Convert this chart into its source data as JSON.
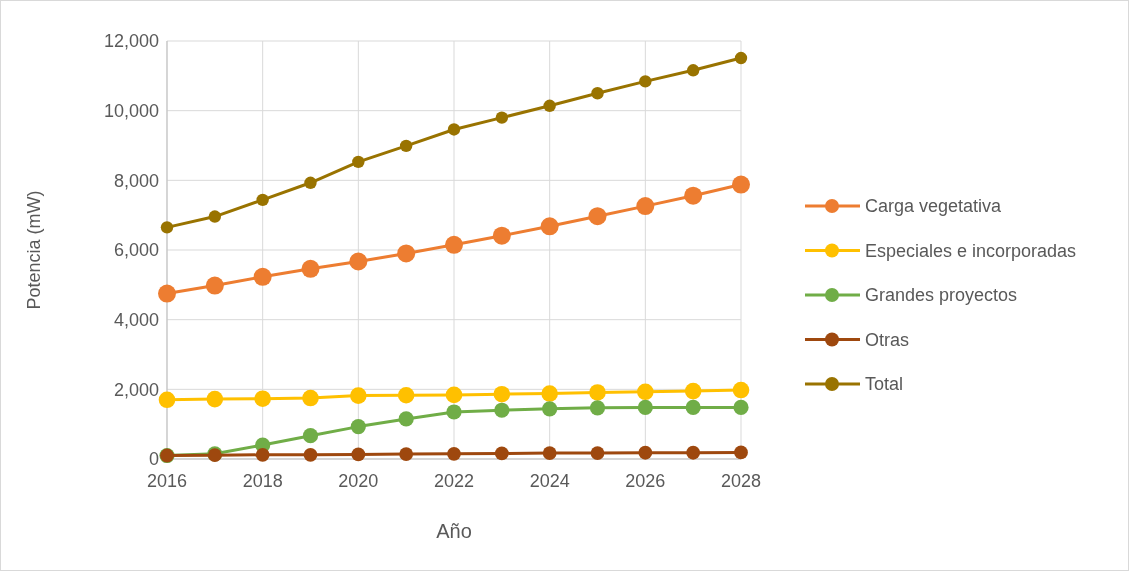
{
  "chart_data": {
    "type": "line",
    "xlabel": "Año",
    "ylabel": "Potencia (mW)",
    "x": [
      2016,
      2017,
      2018,
      2019,
      2020,
      2021,
      2022,
      2023,
      2024,
      2025,
      2026,
      2027,
      2028
    ],
    "xlim": [
      2016,
      2028
    ],
    "xticks": [
      2016,
      2018,
      2020,
      2022,
      2024,
      2026,
      2028
    ],
    "ylim": [
      0,
      12000
    ],
    "yticks": [
      {
        "value": 0,
        "label": "0"
      },
      {
        "value": 2000,
        "label": "2,000"
      },
      {
        "value": 4000,
        "label": "4,000"
      },
      {
        "value": 6000,
        "label": "6,000"
      },
      {
        "value": 8000,
        "label": "8,000"
      },
      {
        "value": 10000,
        "label": "10,000"
      },
      {
        "value": 12000,
        "label": "12,000"
      }
    ],
    "grid": true,
    "legend": "right",
    "marker": "circle",
    "line_style": "solid",
    "series": [
      {
        "name": "Carga vegetativa",
        "color": "#ed7d31",
        "values": [
          4750,
          4980,
          5230,
          5460,
          5670,
          5900,
          6150,
          6410,
          6680,
          6970,
          7260,
          7560,
          7880
        ]
      },
      {
        "name": "Especiales e incorporadas",
        "color": "#ffc000",
        "values": [
          1700,
          1720,
          1730,
          1750,
          1820,
          1830,
          1840,
          1860,
          1880,
          1910,
          1930,
          1950,
          1980
        ]
      },
      {
        "name": "Grandes proyectos",
        "color": "#70ad47",
        "values": [
          100,
          150,
          400,
          670,
          930,
          1150,
          1350,
          1400,
          1440,
          1470,
          1480,
          1480,
          1480
        ]
      },
      {
        "name": "Otras",
        "color": "#9e480e",
        "values": [
          100,
          110,
          120,
          120,
          130,
          140,
          150,
          160,
          170,
          170,
          180,
          180,
          190
        ]
      },
      {
        "name": "Total",
        "color": "#997300",
        "values": [
          6650,
          6960,
          7440,
          7930,
          8530,
          8990,
          9460,
          9800,
          10140,
          10500,
          10840,
          11160,
          11510
        ]
      }
    ]
  }
}
